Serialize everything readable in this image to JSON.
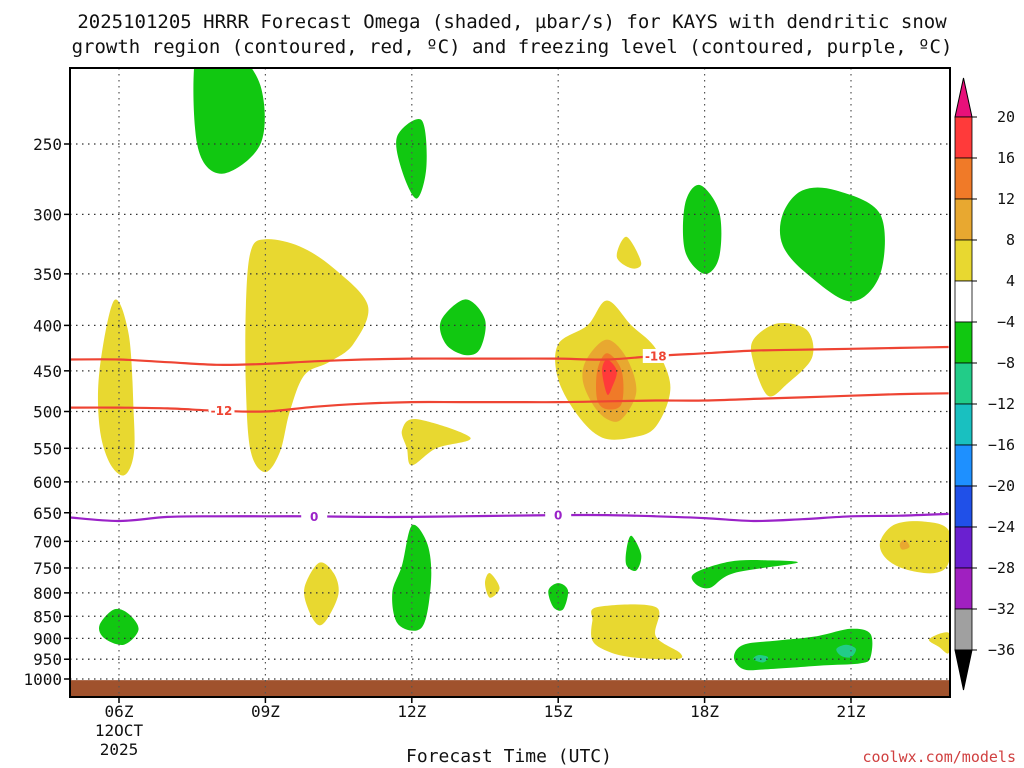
{
  "chart_data": {
    "type": "contour",
    "title_line1": "2025101205 HRRR Forecast Omega (shaded, µbar/s) for KAYS with dendritic snow",
    "title_line2": "growth region (contoured, red, ºC) and freezing level (contoured, purple, ºC)",
    "xlabel": "Forecast Time (UTC)",
    "credit": "coolwx.com/models",
    "x_ticks": [
      {
        "x": 6,
        "label": "06Z",
        "sub1": "12OCT",
        "sub2": "2025"
      },
      {
        "x": 9,
        "label": "09Z"
      },
      {
        "x": 12,
        "label": "12Z"
      },
      {
        "x": 15,
        "label": "15Z"
      },
      {
        "x": 18,
        "label": "18Z"
      },
      {
        "x": 21,
        "label": "21Z"
      }
    ],
    "xlim": [
      5,
      23
    ],
    "y_ticks": [
      "250",
      "300",
      "350",
      "400",
      "450",
      "500",
      "550",
      "600",
      "650",
      "700",
      "750",
      "800",
      "850",
      "900",
      "950",
      "1000"
    ],
    "y_values": [
      250,
      300,
      350,
      400,
      450,
      500,
      550,
      600,
      650,
      700,
      750,
      800,
      850,
      900,
      950,
      1000
    ],
    "ylim": [
      195,
      1030
    ],
    "colorbar": {
      "labels": [
        "20",
        "16",
        "12",
        "8",
        "4",
        "−4",
        "−8",
        "−12",
        "−16",
        "−20",
        "−24",
        "−28",
        "−32",
        "−36"
      ],
      "colors": [
        "#ff3a3a",
        "#f07a28",
        "#e8a830",
        "#e8d830",
        "#ffffff",
        "#11c811",
        "#22cc88",
        "#19c0c0",
        "#1e90ff",
        "#2050e8",
        "#6a20d0",
        "#a020c0",
        "#a0a0a0"
      ],
      "top_color": "#e8107a",
      "bottom_color": "#000000"
    },
    "dgz_lines": [
      {
        "label": "-18",
        "color": "#ee4433",
        "points": [
          [
            5,
            437
          ],
          [
            6,
            437
          ],
          [
            7,
            440
          ],
          [
            8,
            443
          ],
          [
            9,
            442
          ],
          [
            10,
            439
          ],
          [
            11,
            437
          ],
          [
            12,
            436
          ],
          [
            13,
            436
          ],
          [
            14,
            436
          ],
          [
            15,
            436
          ],
          [
            16,
            437
          ],
          [
            17,
            433
          ],
          [
            18,
            430
          ],
          [
            19,
            427
          ],
          [
            20,
            426
          ],
          [
            21,
            425
          ],
          [
            22,
            424
          ],
          [
            23,
            423
          ]
        ],
        "label_at": [
          17.0,
          433
        ]
      },
      {
        "label": "-12",
        "color": "#ee4433",
        "points": [
          [
            5,
            495
          ],
          [
            6,
            495
          ],
          [
            7,
            496
          ],
          [
            8,
            499
          ],
          [
            9,
            500
          ],
          [
            10,
            494
          ],
          [
            11,
            490
          ],
          [
            12,
            488
          ],
          [
            13,
            488
          ],
          [
            14,
            488
          ],
          [
            15,
            488
          ],
          [
            16,
            487
          ],
          [
            17,
            486
          ],
          [
            18,
            486
          ],
          [
            19,
            484
          ],
          [
            20,
            482
          ],
          [
            21,
            480
          ],
          [
            22,
            478
          ],
          [
            23,
            477
          ]
        ],
        "label_at": [
          8.1,
          499
        ]
      }
    ],
    "freezing_line": {
      "label": "0",
      "color": "#9a22c8",
      "points": [
        [
          5,
          658
        ],
        [
          6,
          664
        ],
        [
          7,
          657
        ],
        [
          8,
          656
        ],
        [
          9,
          656
        ],
        [
          10,
          656
        ],
        [
          11,
          657
        ],
        [
          12,
          657
        ],
        [
          13,
          656
        ],
        [
          14,
          655
        ],
        [
          15,
          654
        ],
        [
          16,
          654
        ],
        [
          17,
          656
        ],
        [
          18,
          659
        ],
        [
          19,
          664
        ],
        [
          20,
          661
        ],
        [
          21,
          656
        ],
        [
          22,
          655
        ],
        [
          23,
          652
        ]
      ],
      "label_at": [
        [
          10.0,
          656
        ],
        [
          15.0,
          654
        ]
      ]
    },
    "omega_regions": [
      {
        "level": -4,
        "color": "#11c811",
        "points": [
          [
            7.6,
            195
          ],
          [
            8.3,
            195
          ],
          [
            8.9,
            215
          ],
          [
            8.9,
            250
          ],
          [
            8.1,
            270
          ],
          [
            7.6,
            250
          ]
        ]
      },
      {
        "level": -4,
        "color": "#11c811",
        "points": [
          [
            11.7,
            245
          ],
          [
            12.2,
            235
          ],
          [
            12.3,
            265
          ],
          [
            12.1,
            288
          ],
          [
            11.8,
            268
          ]
        ]
      },
      {
        "level": -4,
        "color": "#11c811",
        "points": [
          [
            17.6,
            292
          ],
          [
            17.9,
            278
          ],
          [
            18.3,
            298
          ],
          [
            18.3,
            335
          ],
          [
            18.0,
            350
          ],
          [
            17.6,
            330
          ]
        ]
      },
      {
        "level": -4,
        "color": "#11c811",
        "points": [
          [
            19.6,
            300
          ],
          [
            20.0,
            282
          ],
          [
            20.7,
            282
          ],
          [
            21.6,
            300
          ],
          [
            21.6,
            350
          ],
          [
            21.0,
            376
          ],
          [
            20.1,
            350
          ],
          [
            19.6,
            325
          ]
        ]
      },
      {
        "level": -4,
        "color": "#11c811",
        "points": [
          [
            12.6,
            395
          ],
          [
            13.1,
            374
          ],
          [
            13.5,
            394
          ],
          [
            13.4,
            425
          ],
          [
            13.1,
            432
          ],
          [
            12.7,
            420
          ]
        ]
      },
      {
        "level": 4,
        "color": "#e8d830",
        "points": [
          [
            5.6,
            450
          ],
          [
            5.9,
            375
          ],
          [
            6.2,
            410
          ],
          [
            6.3,
            500
          ],
          [
            6.3,
            560
          ],
          [
            6.1,
            590
          ],
          [
            5.8,
            570
          ],
          [
            5.6,
            520
          ]
        ]
      },
      {
        "level": 4,
        "color": "#e8d830",
        "points": [
          [
            8.7,
            330
          ],
          [
            9.0,
            320
          ],
          [
            9.7,
            326
          ],
          [
            10.4,
            345
          ],
          [
            11.1,
            380
          ],
          [
            10.8,
            420
          ],
          [
            10.3,
            440
          ],
          [
            9.8,
            455
          ],
          [
            9.5,
            500
          ],
          [
            9.3,
            555
          ],
          [
            9.0,
            585
          ],
          [
            8.7,
            555
          ],
          [
            8.6,
            470
          ],
          [
            8.6,
            380
          ]
        ]
      },
      {
        "level": 4,
        "color": "#e8d830",
        "points": [
          [
            16.2,
            335
          ],
          [
            16.4,
            318
          ],
          [
            16.7,
            340
          ],
          [
            16.5,
            345
          ]
        ]
      },
      {
        "level": 4,
        "color": "#e8d830",
        "points": [
          [
            15.0,
            420
          ],
          [
            15.6,
            400
          ],
          [
            16.0,
            375
          ],
          [
            16.5,
            400
          ],
          [
            17.0,
            425
          ],
          [
            17.3,
            470
          ],
          [
            17.0,
            520
          ],
          [
            16.5,
            535
          ],
          [
            15.9,
            535
          ],
          [
            15.4,
            505
          ],
          [
            15.0,
            460
          ]
        ]
      },
      {
        "level": 8,
        "color": "#e8a830",
        "points": [
          [
            15.6,
            435
          ],
          [
            16.0,
            415
          ],
          [
            16.4,
            435
          ],
          [
            16.6,
            475
          ],
          [
            16.3,
            510
          ],
          [
            16.0,
            510
          ],
          [
            15.7,
            490
          ],
          [
            15.5,
            460
          ]
        ]
      },
      {
        "level": 12,
        "color": "#f07a28",
        "points": [
          [
            15.8,
            450
          ],
          [
            16.0,
            430
          ],
          [
            16.3,
            450
          ],
          [
            16.3,
            490
          ],
          [
            16.0,
            497
          ],
          [
            15.8,
            485
          ]
        ]
      },
      {
        "level": 16,
        "color": "#ff3a3a",
        "points": [
          [
            15.9,
            450
          ],
          [
            16.0,
            437
          ],
          [
            16.2,
            450
          ],
          [
            16.1,
            470
          ],
          [
            16.0,
            478
          ]
        ]
      },
      {
        "level": 4,
        "color": "#e8d830",
        "points": [
          [
            19.0,
            415
          ],
          [
            19.5,
            398
          ],
          [
            20.1,
            405
          ],
          [
            20.2,
            435
          ],
          [
            19.7,
            465
          ],
          [
            19.3,
            480
          ],
          [
            19.0,
            440
          ]
        ]
      },
      {
        "level": 4,
        "color": "#e8d830",
        "points": [
          [
            11.8,
            525
          ],
          [
            12.1,
            510
          ],
          [
            13.2,
            535
          ],
          [
            12.5,
            550
          ],
          [
            12.0,
            575
          ],
          [
            11.9,
            550
          ]
        ]
      },
      {
        "level": -4,
        "color": "#11c811",
        "points": [
          [
            16.4,
            715
          ],
          [
            16.5,
            690
          ],
          [
            16.7,
            725
          ],
          [
            16.6,
            755
          ],
          [
            16.4,
            745
          ]
        ]
      },
      {
        "level": -4,
        "color": "#11c811",
        "points": [
          [
            11.8,
            745
          ],
          [
            12.0,
            672
          ],
          [
            12.3,
            700
          ],
          [
            12.4,
            760
          ],
          [
            12.3,
            850
          ],
          [
            12.1,
            882
          ],
          [
            11.7,
            865
          ],
          [
            11.6,
            800
          ]
        ]
      },
      {
        "level": 4,
        "color": "#e8d830",
        "points": [
          [
            9.8,
            790
          ],
          [
            10.1,
            740
          ],
          [
            10.4,
            760
          ],
          [
            10.5,
            800
          ],
          [
            10.3,
            850
          ],
          [
            10.1,
            870
          ],
          [
            9.9,
            840
          ]
        ]
      },
      {
        "level": 4,
        "color": "#e8d830",
        "points": [
          [
            13.5,
            780
          ],
          [
            13.6,
            760
          ],
          [
            13.8,
            790
          ],
          [
            13.6,
            810
          ]
        ]
      },
      {
        "level": -4,
        "color": "#11c811",
        "points": [
          [
            14.8,
            795
          ],
          [
            15.0,
            780
          ],
          [
            15.2,
            795
          ],
          [
            15.1,
            835
          ],
          [
            14.9,
            830
          ]
        ]
      },
      {
        "level": -4,
        "color": "#11c811",
        "points": [
          [
            17.8,
            760
          ],
          [
            18.5,
            738
          ],
          [
            19.2,
            735
          ],
          [
            19.9,
            740
          ],
          [
            18.6,
            760
          ],
          [
            18.1,
            790
          ],
          [
            17.8,
            780
          ]
        ]
      },
      {
        "level": 4,
        "color": "#e8d830",
        "points": [
          [
            21.6,
            700
          ],
          [
            21.9,
            670
          ],
          [
            22.5,
            665
          ],
          [
            23.0,
            680
          ],
          [
            23.0,
            740
          ],
          [
            22.7,
            760
          ],
          [
            22.1,
            752
          ],
          [
            21.7,
            730
          ]
        ]
      },
      {
        "level": 8,
        "color": "#e8a830",
        "points": [
          [
            22.0,
            705
          ],
          [
            22.1,
            697
          ],
          [
            22.2,
            710
          ],
          [
            22.05,
            715
          ]
        ]
      },
      {
        "level": -4,
        "color": "#11c811",
        "points": [
          [
            5.6,
            870
          ],
          [
            5.9,
            835
          ],
          [
            6.2,
            845
          ],
          [
            6.4,
            880
          ],
          [
            6.1,
            915
          ],
          [
            5.7,
            900
          ]
        ]
      },
      {
        "level": 4,
        "color": "#e8d830",
        "points": [
          [
            15.7,
            860
          ],
          [
            15.8,
            830
          ],
          [
            17.0,
            830
          ],
          [
            17.0,
            895
          ],
          [
            17.5,
            935
          ],
          [
            17.4,
            950
          ],
          [
            16.5,
            945
          ],
          [
            16.0,
            930
          ],
          [
            15.7,
            905
          ]
        ]
      },
      {
        "level": -4,
        "color": "#11c811",
        "points": [
          [
            18.6,
            945
          ],
          [
            18.8,
            915
          ],
          [
            19.5,
            905
          ],
          [
            20.3,
            895
          ],
          [
            21.0,
            878
          ],
          [
            21.4,
            890
          ],
          [
            21.4,
            945
          ],
          [
            21.2,
            960
          ],
          [
            20.5,
            965
          ],
          [
            19.3,
            975
          ],
          [
            18.8,
            975
          ]
        ]
      },
      {
        "level": -8,
        "color": "#22cc88",
        "points": [
          [
            19.0,
            950
          ],
          [
            19.1,
            940
          ],
          [
            19.3,
            945
          ],
          [
            19.2,
            958
          ]
        ]
      },
      {
        "level": -8,
        "color": "#22cc88",
        "points": [
          [
            20.7,
            925
          ],
          [
            20.9,
            915
          ],
          [
            21.1,
            925
          ],
          [
            21.0,
            945
          ],
          [
            20.8,
            942
          ]
        ]
      },
      {
        "level": 4,
        "color": "#e8d830",
        "points": [
          [
            22.6,
            902
          ],
          [
            23.0,
            887
          ],
          [
            23.0,
            935
          ],
          [
            22.8,
            920
          ]
        ]
      }
    ],
    "surface_ground": {
      "color": "#a0522d",
      "from_pressure": 1003
    }
  }
}
